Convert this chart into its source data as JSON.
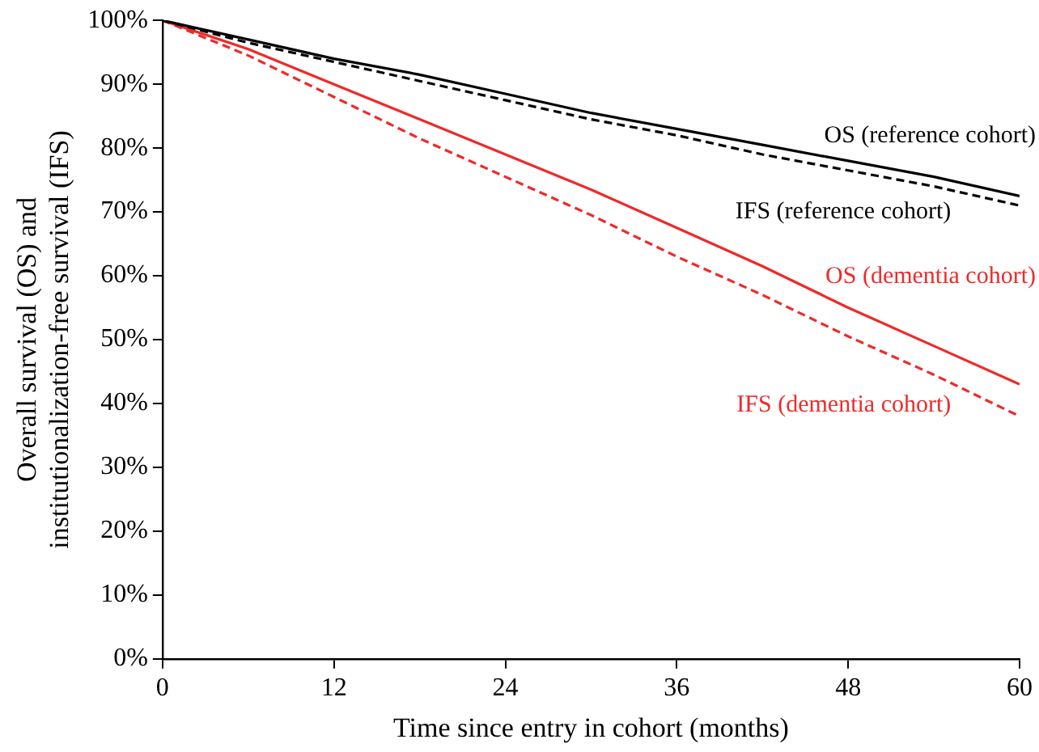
{
  "chart_data": {
    "type": "line",
    "xlabel": "Time since entry in cohort (months)",
    "ylabel": "Overall survival (OS) and institutionalization-free survival (IFS)",
    "x": [
      0,
      6,
      12,
      18,
      24,
      30,
      36,
      42,
      48,
      54,
      60
    ],
    "series": [
      {
        "name": "OS (reference cohort)",
        "color": "#000000",
        "line_style": "solid",
        "values": [
          100,
          97,
          94,
          91.5,
          88.5,
          85.5,
          83,
          80.5,
          78,
          75.5,
          72.5
        ]
      },
      {
        "name": "IFS (reference cohort)",
        "color": "#000000",
        "line_style": "dashed",
        "values": [
          100,
          96.5,
          93.5,
          90.5,
          87.5,
          84.5,
          82,
          79,
          76.5,
          74,
          71
        ]
      },
      {
        "name": "OS (dementia cohort)",
        "color": "#ee2a2a",
        "line_style": "solid",
        "values": [
          100,
          95.5,
          90,
          84.5,
          79,
          73.5,
          67.5,
          61.5,
          55,
          49,
          43
        ]
      },
      {
        "name": "IFS (dementia cohort)",
        "color": "#ee2a2a",
        "line_style": "dashed",
        "values": [
          100,
          94.5,
          88,
          81.5,
          75.5,
          69.5,
          63,
          57,
          50.5,
          44.5,
          38
        ]
      }
    ],
    "xlim": [
      0,
      60
    ],
    "xticks": [
      0,
      12,
      24,
      36,
      48,
      60
    ],
    "ylim": [
      0,
      100
    ],
    "yticks": [
      {
        "value": 0,
        "label": "0%"
      },
      {
        "value": 10,
        "label": "10%"
      },
      {
        "value": 20,
        "label": "20%"
      },
      {
        "value": 30,
        "label": "30%"
      },
      {
        "value": 40,
        "label": "40%"
      },
      {
        "value": 50,
        "label": "50%"
      },
      {
        "value": 60,
        "label": "60%"
      },
      {
        "value": 70,
        "label": "70%"
      },
      {
        "value": 80,
        "label": "80%"
      },
      {
        "value": 90,
        "label": "90%"
      },
      {
        "value": 100,
        "label": "100%"
      }
    ],
    "grid": false,
    "legend": false,
    "marker": "none"
  }
}
